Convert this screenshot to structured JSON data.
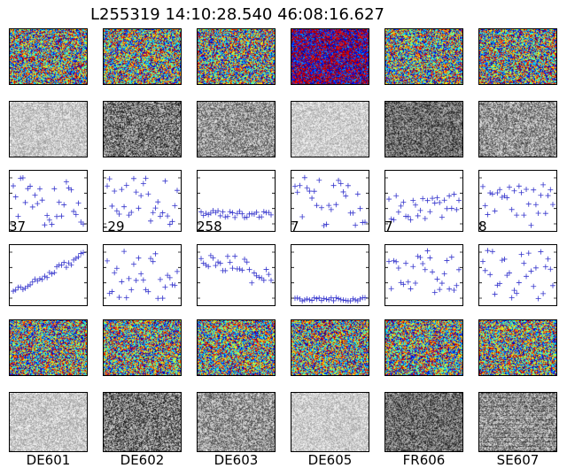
{
  "title": "L255319 14:10:28.540 46:08:16.627",
  "stations": [
    "DE601",
    "DE602",
    "DE603",
    "DE605",
    "FR606",
    "SE607"
  ],
  "row_numbers": [
    "37",
    "-29",
    "258",
    "7",
    "7",
    "8"
  ],
  "colors": {
    "plot_marker": "#3333cc",
    "frame": "#000000"
  }
}
